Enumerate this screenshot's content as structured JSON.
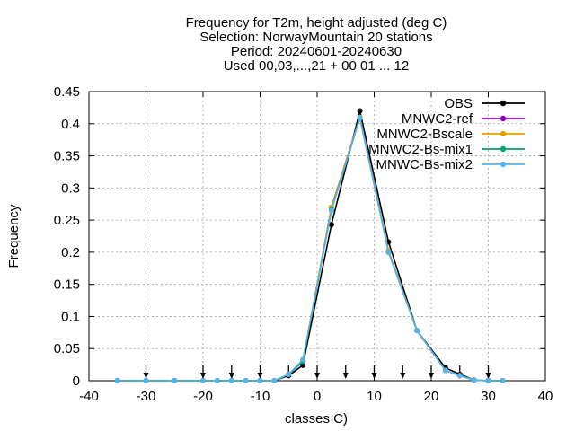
{
  "chart_data": {
    "type": "line",
    "title_lines": [
      "Frequency  for T2m, height adjusted (deg C)",
      "Selection: NorwayMountain     20 stations",
      "Period: 20240601-20240630",
      "Used 00,03,...,21 + 00 01 ... 12"
    ],
    "xlabel": "classes C)",
    "ylabel": "Frequency",
    "xlim": [
      -40,
      40
    ],
    "ylim": [
      0,
      0.45
    ],
    "xticks": [
      -40,
      -30,
      -20,
      -10,
      0,
      10,
      20,
      30,
      40
    ],
    "yticks": [
      0,
      0.05,
      0.1,
      0.15,
      0.2,
      0.25,
      0.3,
      0.35,
      0.4,
      0.45
    ],
    "ytick_labels": [
      "0",
      "0.05",
      "0.1",
      "0.15",
      "0.2",
      "0.25",
      "0.3",
      "0.35",
      "0.4",
      "0.45"
    ],
    "grid": true,
    "legend_position": "top-right",
    "x": [
      -35,
      -30,
      -25,
      -20,
      -17.5,
      -15,
      -12.5,
      -10,
      -7.5,
      -5,
      -2.5,
      2.5,
      7.5,
      12.5,
      17.5,
      22.5,
      25,
      27.5,
      30,
      32.5
    ],
    "series": [
      {
        "name": "OBS",
        "color": "#000000",
        "values": [
          0,
          0,
          0,
          0,
          0,
          0,
          0,
          0,
          0,
          0.008,
          0.024,
          0.243,
          0.42,
          0.216,
          0.078,
          0.02,
          0.01,
          0.001,
          0,
          0
        ]
      },
      {
        "name": "MNWC2-ref",
        "color": "#9400d3",
        "values": [
          0,
          0,
          0,
          0,
          0,
          0,
          0,
          0,
          0,
          0.01,
          0.03,
          0.27,
          0.41,
          0.202,
          0.078,
          0.016,
          0.008,
          0.001,
          0,
          0
        ]
      },
      {
        "name": "MNWC2-Bscale",
        "color": "#e69f00",
        "values": [
          0,
          0,
          0,
          0,
          0,
          0,
          0,
          0,
          0,
          0.01,
          0.031,
          0.27,
          0.41,
          0.202,
          0.078,
          0.016,
          0.008,
          0.001,
          0,
          0
        ]
      },
      {
        "name": "MNWC2-Bs-mix1",
        "color": "#009e73",
        "values": [
          0,
          0,
          0,
          0,
          0,
          0,
          0,
          0,
          0,
          0.01,
          0.03,
          0.266,
          0.409,
          0.2,
          0.078,
          0.016,
          0.008,
          0.001,
          0,
          0
        ]
      },
      {
        "name": "MNWC-Bs-mix2",
        "color": "#56b4e9",
        "values": [
          0,
          0,
          0,
          0,
          0,
          0,
          0,
          0,
          0,
          0.01,
          0.033,
          0.265,
          0.409,
          0.2,
          0.078,
          0.016,
          0.008,
          0.001,
          0,
          0
        ]
      }
    ],
    "arrow_x": [
      -30,
      -20,
      -15,
      -10,
      -5,
      0,
      5,
      10,
      15,
      20,
      25,
      30
    ]
  }
}
